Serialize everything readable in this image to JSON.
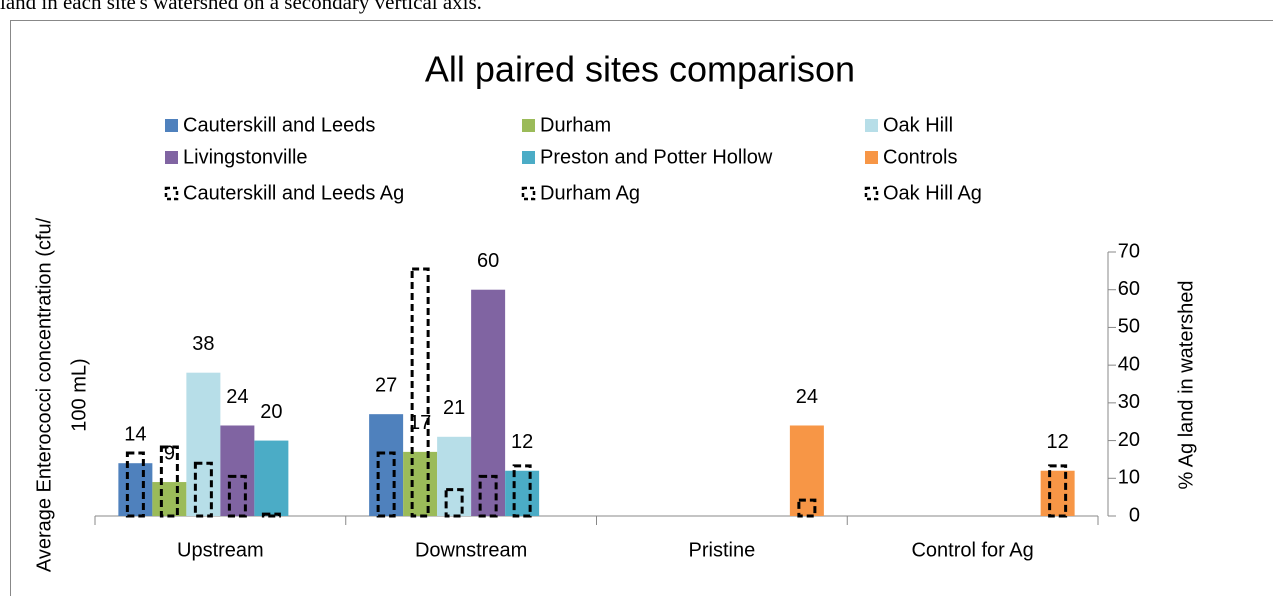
{
  "document": {
    "caption": "land in each site's watershed on a secondary vertical axis."
  },
  "chart_data": {
    "type": "bar",
    "title": "All paired sites comparison",
    "categories": [
      "Upstream",
      "Downstream",
      "Pristine",
      "Control for Ag"
    ],
    "ylabel": [
      "Average Enterococci concentration (cfu/",
      "100 mL)"
    ],
    "y2label": "% Ag land in watershed",
    "ylim": [
      0,
      70
    ],
    "y2lim": [
      0,
      70
    ],
    "y2ticks": [
      0,
      10,
      20,
      30,
      40,
      50,
      60,
      70
    ],
    "series": [
      {
        "name": "Cauterskill and Leeds",
        "color": "#4f81bd",
        "values": [
          14,
          27,
          null,
          null
        ],
        "data_labels": true
      },
      {
        "name": "Durham",
        "color": "#9bbb59",
        "values": [
          9,
          17,
          null,
          null
        ],
        "data_labels": true
      },
      {
        "name": "Oak Hill",
        "color": "#b7dee8",
        "values": [
          38,
          21,
          null,
          null
        ],
        "data_labels": true
      },
      {
        "name": "Livingstonville",
        "color": "#8064a2",
        "values": [
          24,
          60,
          null,
          null
        ],
        "data_labels": true
      },
      {
        "name": "Preston and Potter Hollow",
        "color": "#4bacc6",
        "values": [
          20,
          12,
          null,
          null
        ],
        "data_labels": true
      },
      {
        "name": "Controls",
        "color": "#f79646",
        "values": [
          null,
          null,
          24,
          12
        ],
        "data_labels": true
      },
      {
        "name": "Cauterskill and Leeds Ag",
        "color": "#000000",
        "axis": "y2",
        "style": "dashed",
        "values": [
          16.7,
          16.7,
          null,
          null
        ]
      },
      {
        "name": "Durham Ag",
        "color": "#000000",
        "axis": "y2",
        "style": "dashed",
        "values": [
          18.3,
          65.5,
          null,
          null
        ]
      },
      {
        "name": "Oak Hill Ag",
        "color": "#000000",
        "axis": "y2",
        "style": "dashed",
        "values": [
          14,
          7,
          null,
          null
        ]
      },
      {
        "color": "#000000",
        "axis": "y2",
        "style": "dashed",
        "values": [
          10.5,
          10.5,
          null,
          null
        ]
      },
      {
        "color": "#000000",
        "axis": "y2",
        "style": "dashed",
        "values": [
          0.5,
          13.3,
          null,
          null
        ]
      },
      {
        "color": "#000000",
        "axis": "y2",
        "style": "dashed",
        "values": [
          null,
          null,
          4.2,
          13.3
        ]
      }
    ]
  }
}
